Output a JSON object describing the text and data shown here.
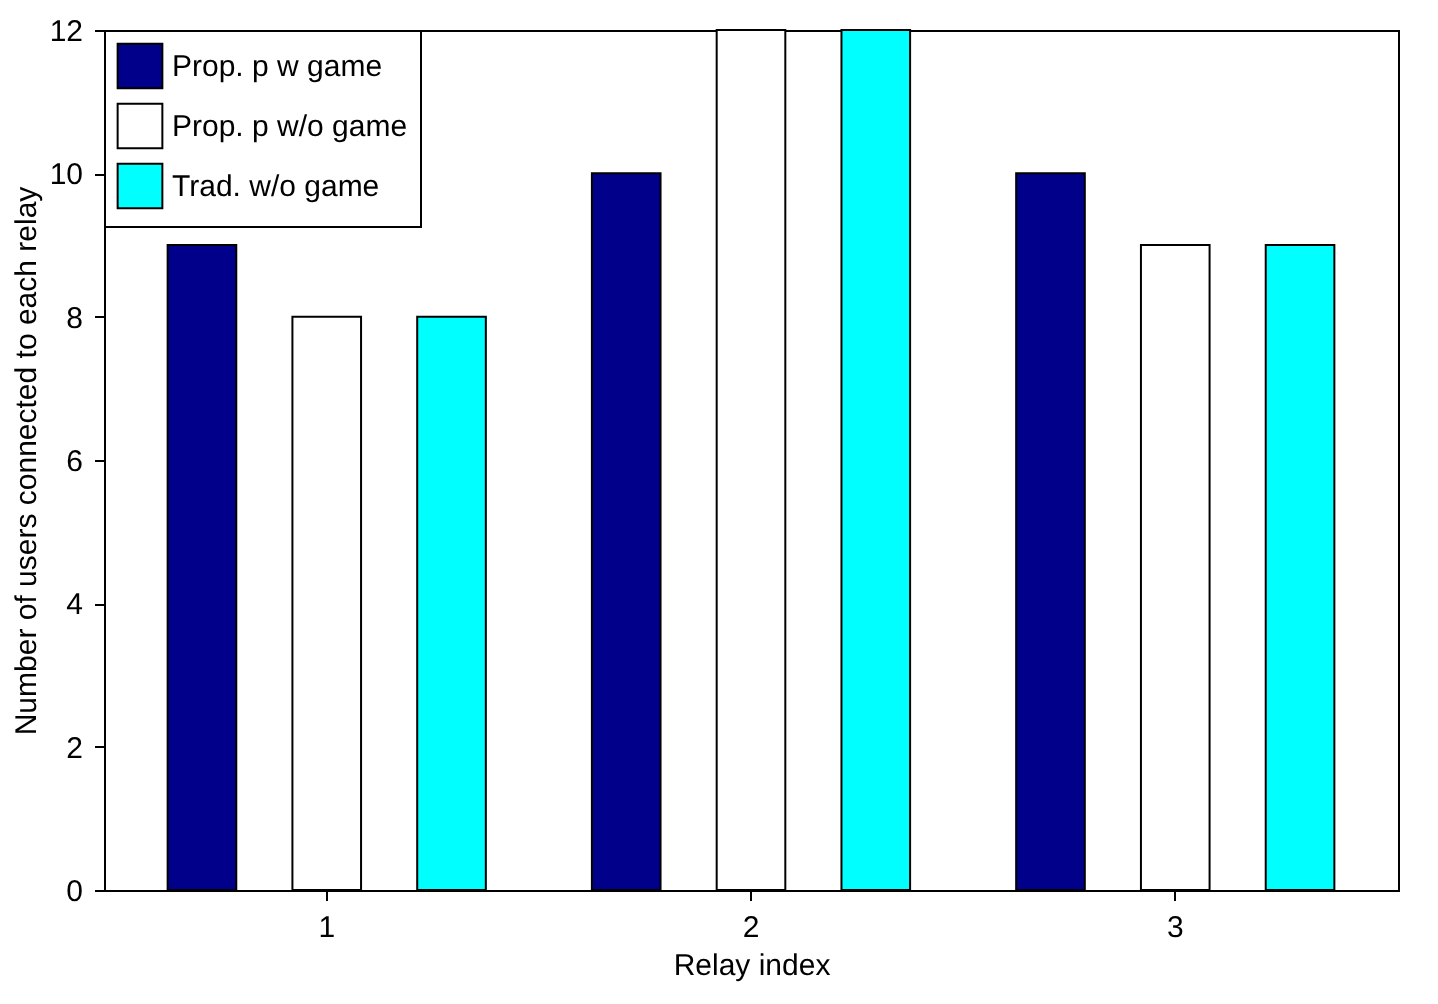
{
  "chart_data": {
    "type": "bar",
    "xlabel": "Relay index",
    "ylabel": "Number of users connected to each relay",
    "categories": [
      "1",
      "2",
      "3"
    ],
    "series": [
      {
        "name": "Prop. p w game",
        "color": "#00008b",
        "values": [
          9,
          10,
          10
        ]
      },
      {
        "name": "Prop. p w/o game",
        "color": "#ffffff",
        "values": [
          8,
          12,
          9
        ]
      },
      {
        "name": "Trad. w/o game",
        "color": "#00ffff",
        "values": [
          8,
          12,
          9
        ]
      }
    ],
    "ylim": [
      0,
      12
    ],
    "yticks": [
      0,
      2,
      4,
      6,
      8,
      10,
      12
    ],
    "grid": false,
    "legend": "top left"
  }
}
